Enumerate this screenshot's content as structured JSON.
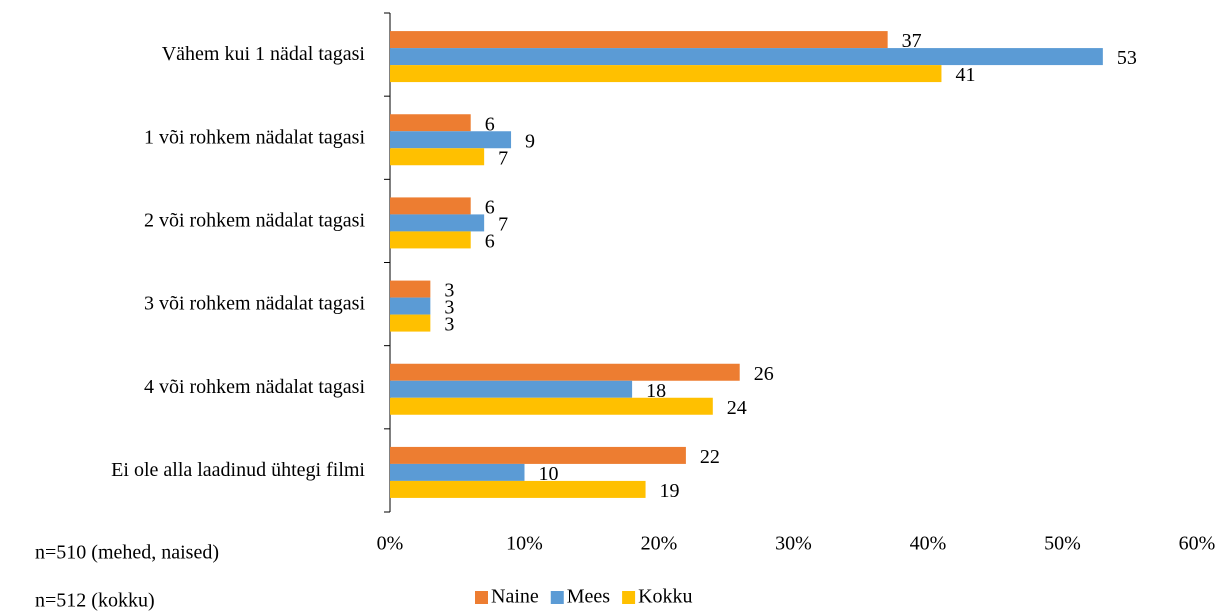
{
  "chart_data": {
    "type": "bar",
    "orientation": "horizontal",
    "categories": [
      "Vähem kui 1 nädal tagasi",
      "1 või rohkem nädalat tagasi",
      "2 või rohkem nädalat tagasi",
      "3 või rohkem nädalat tagasi",
      "4 või rohkem nädalat tagasi",
      "Ei ole alla laadinud ühtegi filmi"
    ],
    "series": [
      {
        "name": "Naine",
        "color": "#ed7d31",
        "values": [
          37,
          6,
          6,
          3,
          26,
          22
        ]
      },
      {
        "name": "Mees",
        "color": "#5b9bd5",
        "values": [
          53,
          9,
          7,
          3,
          18,
          10
        ]
      },
      {
        "name": "Kokku",
        "color": "#ffc000",
        "values": [
          41,
          7,
          6,
          3,
          24,
          19
        ]
      }
    ],
    "xlim": [
      0,
      60
    ],
    "xticks": [
      {
        "value": 0,
        "label": "0%"
      },
      {
        "value": 10,
        "label": "10%"
      },
      {
        "value": 20,
        "label": "20%"
      },
      {
        "value": 30,
        "label": "30%"
      },
      {
        "value": 40,
        "label": "40%"
      },
      {
        "value": 50,
        "label": "50%"
      },
      {
        "value": 60,
        "label": "60%"
      }
    ],
    "grid": false,
    "legend": "bottom",
    "annotations": [
      "n=510 (mehed, naised)",
      "n=512 (kokku)"
    ]
  }
}
